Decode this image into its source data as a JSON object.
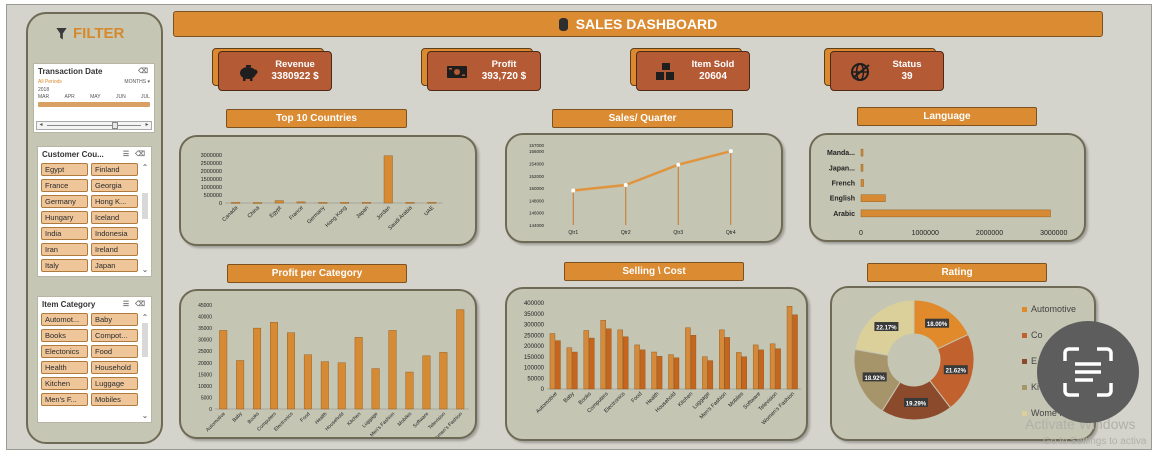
{
  "dashboard": {
    "title": "SALES DASHBOARD"
  },
  "filter": {
    "title": "FILTER",
    "timeline": {
      "title": "Transaction Date",
      "selection": "All Periods",
      "granularity": "MONTHS",
      "year": "2018",
      "months": [
        "MAR",
        "APR",
        "MAY",
        "JUN",
        "JUL"
      ]
    },
    "customer_country": {
      "title": "Customer Cou...",
      "items": [
        "Egypt",
        "Finland",
        "France",
        "Georgia",
        "Germany",
        "Hong K...",
        "Hungary",
        "Iceland",
        "India",
        "Indonesia",
        "Iran",
        "Ireland",
        "Italy",
        "Japan"
      ]
    },
    "item_category": {
      "title": "Item Category",
      "items": [
        "Automot...",
        "Baby",
        "Books",
        "Compot...",
        "Electonics",
        "Food",
        "Health",
        "Household",
        "Kitchen",
        "Luggage",
        "Men's F...",
        "Mobiles"
      ]
    }
  },
  "kpis": [
    {
      "label": "Revenue",
      "value": "3380922 $",
      "icon": "piggy-bank-icon"
    },
    {
      "label": "Profit",
      "value": "393,720 $",
      "icon": "cash-icon"
    },
    {
      "label": "Item Sold",
      "value": "20604",
      "icon": "boxes-icon"
    },
    {
      "label": "Status",
      "value": "39",
      "icon": "globe-icon"
    }
  ],
  "sections": {
    "top_countries": "Top 10 Countries",
    "sales_quarter": "Sales/ Quarter",
    "language": "Language",
    "profit_category": "Profit per Category",
    "selling_cost": "Selling \\ Cost",
    "rating": "Rating"
  },
  "overlay": {
    "watermark": "Activate Windows",
    "watermark_sub": "Go to Settings to activa"
  },
  "colors": {
    "accent": "#db8b32",
    "kpi": "#b45a34",
    "card": "#c4c5b3",
    "bar": "#d68a34"
  },
  "chart_data": [
    {
      "id": "top_countries",
      "type": "bar",
      "categories": [
        "Canada",
        "China",
        "Egypt",
        "France",
        "Germany",
        "Hong Kong",
        "Japan",
        "Jordan",
        "Saudi Arabia",
        "UAE"
      ],
      "values": [
        40000,
        30000,
        150000,
        70000,
        40000,
        40000,
        40000,
        2950000,
        40000,
        50000
      ],
      "yticks": [
        0,
        500000,
        1000000,
        1500000,
        2000000,
        2500000,
        3000000
      ],
      "ylim": [
        0,
        3000000
      ]
    },
    {
      "id": "sales_quarter",
      "type": "line",
      "categories": [
        "Qtr1",
        "Qtr2",
        "Qtr3",
        "Qtr4"
      ],
      "values": [
        149600,
        150500,
        153800,
        156000
      ],
      "yticks": [
        144000,
        146000,
        148000,
        150000,
        152000,
        154000,
        156000,
        157000
      ],
      "ylim": [
        144000,
        157000
      ]
    },
    {
      "id": "language",
      "type": "bar",
      "orientation": "horizontal",
      "categories": [
        "Manda...",
        "Japan...",
        "French",
        "English",
        "Arabic"
      ],
      "values": [
        25000,
        20000,
        40000,
        380000,
        2950000
      ],
      "xticks": [
        0,
        1000000,
        2000000,
        3000000
      ],
      "xlim": [
        0,
        3300000
      ]
    },
    {
      "id": "profit_category",
      "type": "bar",
      "categories": [
        "Automotive",
        "Baby",
        "Books",
        "Computers",
        "Electronics",
        "Food",
        "Health",
        "Household",
        "Kitchen",
        "Luggage",
        "Men's Fashion",
        "Mobiles",
        "Software",
        "Television",
        "Women's Fashion"
      ],
      "values": [
        34000,
        21000,
        35000,
        37500,
        33000,
        23500,
        20500,
        20000,
        31000,
        17500,
        34000,
        16000,
        23000,
        24500,
        43000
      ],
      "yticks": [
        0,
        5000,
        10000,
        15000,
        20000,
        25000,
        30000,
        35000,
        40000,
        45000
      ],
      "ylim": [
        0,
        45000
      ]
    },
    {
      "id": "selling_cost",
      "type": "bar",
      "categories": [
        "Automotive",
        "Baby",
        "Books",
        "Computers",
        "Electronics",
        "Food",
        "Health",
        "Household",
        "Kitchen",
        "Luggage",
        "Men's Fashion",
        "Mobiles",
        "Software",
        "Television",
        "Women's Fashion"
      ],
      "series": [
        {
          "values": [
            258000,
            192000,
            272000,
            320000,
            275000,
            205000,
            172000,
            160000,
            285000,
            150000,
            275000,
            170000,
            205000,
            210000,
            385000
          ]
        },
        {
          "values": [
            225000,
            172000,
            237000,
            280000,
            243000,
            182000,
            152000,
            145000,
            250000,
            132000,
            240000,
            150000,
            182000,
            187000,
            345000
          ]
        }
      ],
      "yticks": [
        0,
        50000,
        100000,
        150000,
        200000,
        250000,
        300000,
        350000,
        400000
      ],
      "ylim": [
        0,
        400000
      ]
    },
    {
      "id": "rating",
      "type": "pie",
      "labels": [
        "Automotive",
        "Co...",
        "E...",
        "Ki...",
        "Women's Fashion"
      ],
      "legend_labels": [
        "Automotive",
        "Co",
        "E",
        "Ki",
        "Wome Fashion"
      ],
      "values": [
        18.0,
        21.62,
        19.29,
        18.92,
        22.17
      ],
      "display": [
        "18.00%",
        "21.62%",
        "19.29%",
        "18.92%",
        "22.17%"
      ],
      "colors": [
        "#e08a2c",
        "#c1622e",
        "#8c4a2c",
        "#a6946a",
        "#dcd09a"
      ],
      "legend": "right"
    }
  ]
}
